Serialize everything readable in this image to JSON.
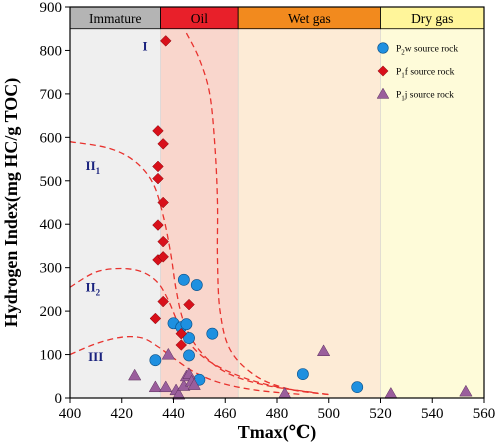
{
  "chart_data": {
    "type": "scatter",
    "xlabel": "Tmax(℃)",
    "ylabel": "Hydrogen Index(mg HC/g TOC)",
    "xlim": [
      400,
      560
    ],
    "ylim": [
      0,
      900
    ],
    "xticks": [
      400,
      420,
      440,
      460,
      480,
      500,
      520,
      540,
      560
    ],
    "yticks": [
      0,
      100,
      200,
      300,
      400,
      500,
      600,
      700,
      800,
      900
    ],
    "zones": [
      {
        "label": "Immature",
        "x0": 400,
        "x1": 435,
        "band_color": "#b4b4b4",
        "fill_color": "#efefef"
      },
      {
        "label": "Oil",
        "x0": 435,
        "x1": 465,
        "band_color": "#e8202a",
        "fill_color": "#f9d6cc"
      },
      {
        "label": "Wet gas",
        "x0": 465,
        "x1": 520,
        "band_color": "#f28a1e",
        "fill_color": "#fdebd6"
      },
      {
        "label": "Dry gas",
        "x0": 520,
        "x1": 560,
        "band_color": "#fff59a",
        "fill_color": "#fefbd9"
      }
    ],
    "kerogen_labels": [
      {
        "main": "I",
        "sub": "",
        "x": 428,
        "y": 800
      },
      {
        "main": "II",
        "sub": "1",
        "x": 406,
        "y": 525
      },
      {
        "main": "II",
        "sub": "2",
        "x": 406,
        "y": 245
      },
      {
        "main": "III",
        "sub": "",
        "x": 407,
        "y": 85
      }
    ],
    "boundaries": [
      {
        "name": "I/II1",
        "points": [
          [
            445,
            840
          ],
          [
            450,
            780
          ],
          [
            454,
            700
          ],
          [
            456,
            580
          ],
          [
            457,
            450
          ],
          [
            457,
            320
          ],
          [
            458,
            200
          ],
          [
            462,
            110
          ],
          [
            472,
            50
          ],
          [
            485,
            20
          ],
          [
            500,
            8
          ]
        ]
      },
      {
        "name": "II1/II2",
        "points": [
          [
            400,
            590
          ],
          [
            415,
            575
          ],
          [
            425,
            545
          ],
          [
            432,
            495
          ],
          [
            436,
            420
          ],
          [
            439,
            330
          ],
          [
            441,
            250
          ],
          [
            444,
            175
          ],
          [
            450,
            110
          ],
          [
            460,
            60
          ],
          [
            475,
            30
          ],
          [
            495,
            12
          ]
        ]
      },
      {
        "name": "II2/III",
        "points": [
          [
            400,
            255
          ],
          [
            410,
            290
          ],
          [
            420,
            298
          ],
          [
            428,
            290
          ],
          [
            434,
            265
          ],
          [
            438,
            225
          ],
          [
            442,
            170
          ],
          [
            447,
            120
          ],
          [
            455,
            80
          ],
          [
            468,
            45
          ],
          [
            483,
            22
          ],
          [
            500,
            8
          ]
        ]
      },
      {
        "name": "III-lower",
        "points": [
          [
            400,
            100
          ],
          [
            410,
            125
          ],
          [
            420,
            140
          ],
          [
            428,
            138
          ],
          [
            434,
            118
          ],
          [
            440,
            92
          ],
          [
            448,
            60
          ],
          [
            458,
            35
          ],
          [
            472,
            18
          ],
          [
            490,
            8
          ]
        ]
      }
    ],
    "legend_position": "top-right",
    "series": [
      {
        "name": "P2w source rock",
        "name_main": "P",
        "name_sub": "2",
        "name_rest": "w source rock",
        "marker": "circle",
        "color": "#1e90e0",
        "points": [
          [
            433,
            87
          ],
          [
            440,
            172
          ],
          [
            443,
            163
          ],
          [
            444,
            272
          ],
          [
            445,
            170
          ],
          [
            446,
            98
          ],
          [
            446,
            138
          ],
          [
            449,
            260
          ],
          [
            450,
            42
          ],
          [
            455,
            148
          ],
          [
            490,
            55
          ],
          [
            511,
            25
          ]
        ]
      },
      {
        "name": "P1f source rock",
        "name_main": "P",
        "name_sub": "1",
        "name_rest": "f source rock",
        "marker": "diamond",
        "color": "#d8101a",
        "points": [
          [
            437,
            822
          ],
          [
            434,
            615
          ],
          [
            436,
            585
          ],
          [
            434,
            533
          ],
          [
            434,
            505
          ],
          [
            436,
            450
          ],
          [
            436,
            360
          ],
          [
            434,
            398
          ],
          [
            434,
            318
          ],
          [
            436,
            325
          ],
          [
            436,
            222
          ],
          [
            433,
            183
          ],
          [
            443,
            148
          ],
          [
            443,
            122
          ],
          [
            446,
            215
          ]
        ]
      },
      {
        "name": "P1j source rock",
        "name_main": "P",
        "name_sub": "1",
        "name_rest": "j source rock",
        "marker": "triangle",
        "color": "#9a5e9c",
        "points": [
          [
            425,
            52
          ],
          [
            433,
            25
          ],
          [
            437,
            25
          ],
          [
            438,
            100
          ],
          [
            441,
            18
          ],
          [
            442,
            8
          ],
          [
            444,
            28
          ],
          [
            445,
            50
          ],
          [
            446,
            55
          ],
          [
            447,
            38
          ],
          [
            448,
            30
          ],
          [
            483,
            10
          ],
          [
            498,
            108
          ],
          [
            524,
            10
          ],
          [
            553,
            15
          ]
        ]
      }
    ]
  }
}
